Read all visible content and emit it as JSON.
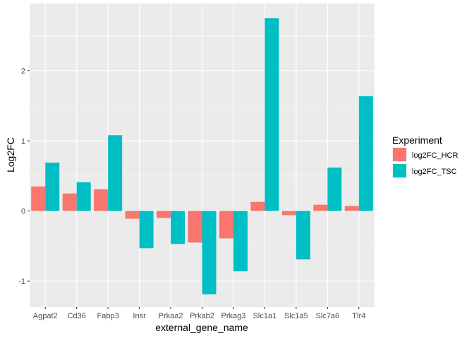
{
  "chart_data": {
    "type": "bar",
    "xlabel": "external_gene_name",
    "ylabel": "Log2FC",
    "categories": [
      "Agpat2",
      "Cd36",
      "Fabp3",
      "Insr",
      "Prkaa2",
      "Prkab2",
      "Prkag3",
      "Slc1a1",
      "Slc1a5",
      "Slc7a6",
      "Tlr4"
    ],
    "series": [
      {
        "name": "log2FC_HCR",
        "color": "#F8766D",
        "values": [
          0.35,
          0.25,
          0.31,
          -0.11,
          -0.1,
          -0.45,
          -0.39,
          0.13,
          -0.06,
          0.09,
          0.07
        ]
      },
      {
        "name": "log2FC_TSC",
        "color": "#00BFC4",
        "values": [
          0.69,
          0.41,
          1.08,
          -0.53,
          -0.47,
          -1.19,
          -0.86,
          2.75,
          -0.69,
          0.62,
          1.64
        ]
      }
    ],
    "ylim": [
      -1.37,
      2.96
    ],
    "yticks": [
      -1,
      0,
      1,
      2
    ],
    "legend": {
      "title": "Experiment",
      "position": "right"
    },
    "grid": true,
    "panel_background": "#EBEBEB",
    "grid_color": "#FFFFFF"
  }
}
